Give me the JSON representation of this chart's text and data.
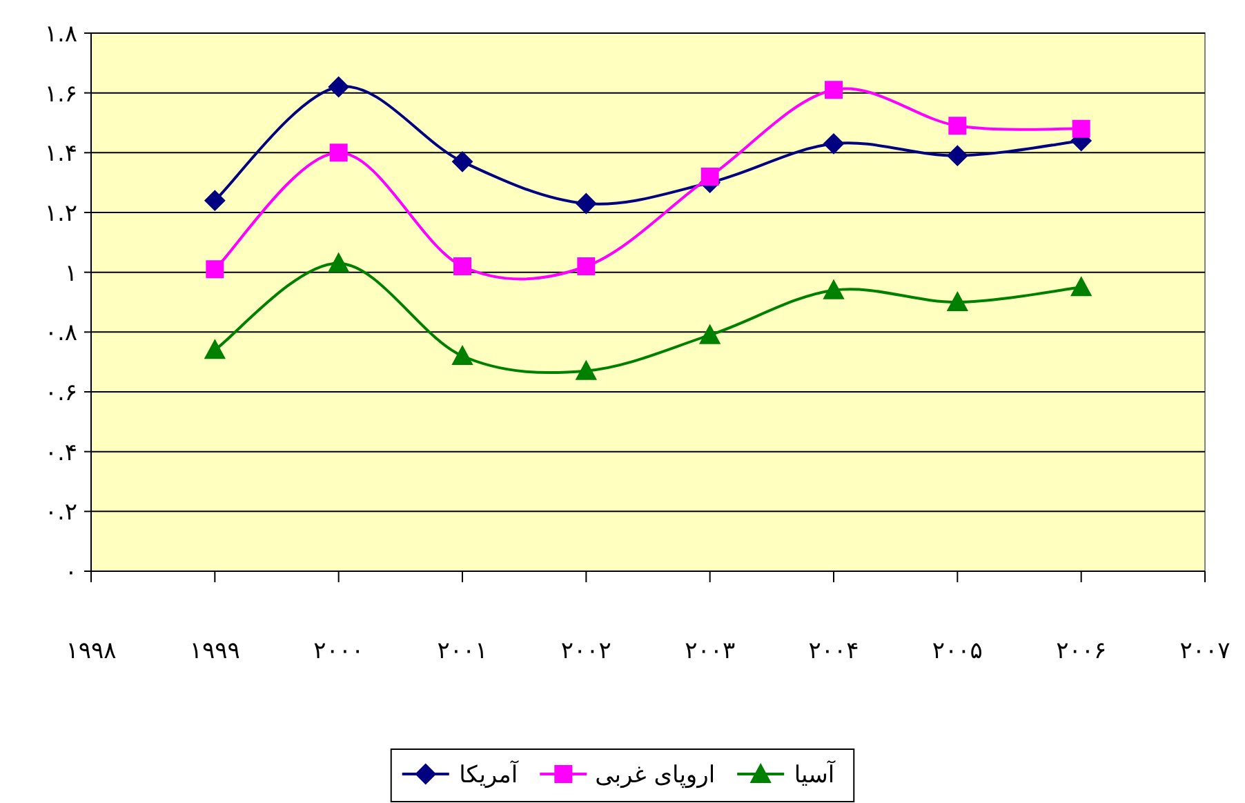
{
  "chart_data": {
    "type": "line",
    "x": [
      1999,
      2000,
      2001,
      2002,
      2003,
      2004,
      2005,
      2006
    ],
    "xlim": [
      1998,
      2007
    ],
    "xticks": [
      {
        "value": 1998,
        "label": "۱۹۹۸"
      },
      {
        "value": 1999,
        "label": "۱۹۹۹"
      },
      {
        "value": 2000,
        "label": "۲۰۰۰"
      },
      {
        "value": 2001,
        "label": "۲۰۰۱"
      },
      {
        "value": 2002,
        "label": "۲۰۰۲"
      },
      {
        "value": 2003,
        "label": "۲۰۰۳"
      },
      {
        "value": 2004,
        "label": "۲۰۰۴"
      },
      {
        "value": 2005,
        "label": "۲۰۰۵"
      },
      {
        "value": 2006,
        "label": "۲۰۰۶"
      },
      {
        "value": 2007,
        "label": "۲۰۰۷"
      }
    ],
    "ylim": [
      0,
      1.8
    ],
    "yticks": [
      {
        "value": 0,
        "label": "۰"
      },
      {
        "value": 0.2,
        "label": "۰.۲"
      },
      {
        "value": 0.4,
        "label": "۰.۴"
      },
      {
        "value": 0.6,
        "label": "۰.۶"
      },
      {
        "value": 0.8,
        "label": "۰.۸"
      },
      {
        "value": 1,
        "label": "۱"
      },
      {
        "value": 1.2,
        "label": "۱.۲"
      },
      {
        "value": 1.4,
        "label": "۱.۴"
      },
      {
        "value": 1.6,
        "label": "۱.۶"
      },
      {
        "value": 1.8,
        "label": "۱.۸"
      }
    ],
    "grid": "y",
    "legend": "bottom",
    "line_style": "solid",
    "series": [
      {
        "name": "آمریکا",
        "color": "#000080",
        "marker": "diamond",
        "values": [
          1.24,
          1.62,
          1.37,
          1.23,
          1.3,
          1.43,
          1.39,
          1.44
        ]
      },
      {
        "name": "اروپای غربی",
        "color": "#ff00ff",
        "marker": "square",
        "values": [
          1.01,
          1.4,
          1.02,
          1.02,
          1.32,
          1.61,
          1.49,
          1.48
        ]
      },
      {
        "name": "آسیا",
        "color": "#008000",
        "marker": "triangle",
        "values": [
          0.74,
          1.03,
          0.72,
          0.67,
          0.79,
          0.94,
          0.9,
          0.95
        ]
      }
    ]
  }
}
